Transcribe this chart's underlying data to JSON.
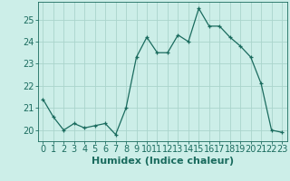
{
  "x": [
    0,
    1,
    2,
    3,
    4,
    5,
    6,
    7,
    8,
    9,
    10,
    11,
    12,
    13,
    14,
    15,
    16,
    17,
    18,
    19,
    20,
    21,
    22,
    23
  ],
  "y": [
    21.4,
    20.6,
    20.0,
    20.3,
    20.1,
    20.2,
    20.3,
    19.8,
    21.0,
    23.3,
    24.2,
    23.5,
    23.5,
    24.3,
    24.0,
    25.5,
    24.7,
    24.7,
    24.2,
    23.8,
    23.3,
    22.1,
    20.0,
    19.9
  ],
  "line_color": "#1a6b5e",
  "marker": "+",
  "bg_color": "#cceee8",
  "grid_color": "#aad4cc",
  "xlabel": "Humidex (Indice chaleur)",
  "ylim": [
    19.5,
    25.8
  ],
  "xlim": [
    -0.5,
    23.5
  ],
  "yticks": [
    20,
    21,
    22,
    23,
    24,
    25
  ],
  "xticks": [
    0,
    1,
    2,
    3,
    4,
    5,
    6,
    7,
    8,
    9,
    10,
    11,
    12,
    13,
    14,
    15,
    16,
    17,
    18,
    19,
    20,
    21,
    22,
    23
  ],
  "tick_color": "#1a6b5e",
  "label_color": "#1a6b5e",
  "font_size": 7,
  "xlabel_fontsize": 8
}
